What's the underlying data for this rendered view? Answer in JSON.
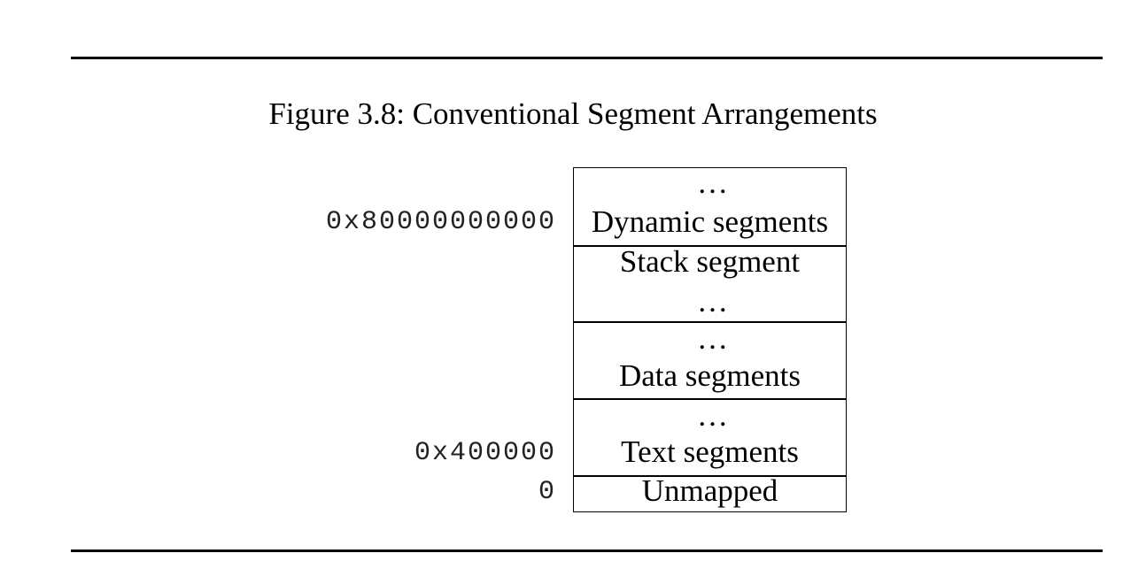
{
  "caption": "Figure 3.8: Conventional Segment Arrangements",
  "segments": [
    {
      "top_text": "…",
      "label": "Dynamic segments"
    },
    {
      "top_text": "Stack segment",
      "label": "…"
    },
    {
      "top_text": "…",
      "label": "Data segments"
    },
    {
      "top_text": "…",
      "label": "Text segments"
    },
    {
      "label": "Unmapped"
    }
  ],
  "addresses": {
    "dynamic": "0x80000000000",
    "text": "0x400000",
    "zero": "0"
  }
}
